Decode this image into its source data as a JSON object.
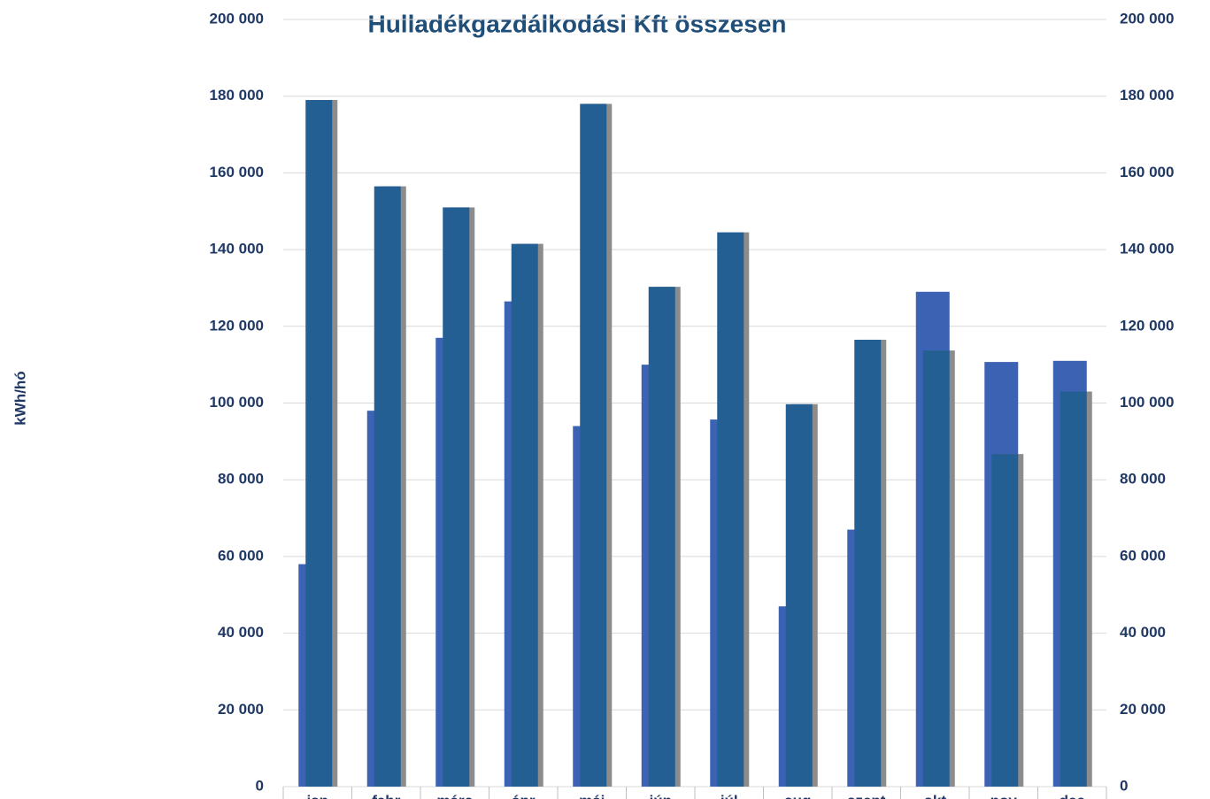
{
  "chart_data": {
    "type": "bar",
    "title": "Hulladékgazdálkodási Kft összesen",
    "y_label": "kWh/hó",
    "categories": [
      "jan",
      "febr",
      "márc",
      "ápr",
      "máj",
      "jún",
      "júl",
      "aug",
      "szept",
      "okt",
      "nov",
      "dec"
    ],
    "series": [
      {
        "color": "#3b62b3",
        "values": [
          58000,
          98000,
          117000,
          126500,
          94000,
          110000,
          95700,
          47000,
          67000,
          129000,
          110700,
          111000
        ]
      },
      {
        "color": "#245f93",
        "values": [
          179000,
          156500,
          151000,
          141500,
          178000,
          130300,
          144500,
          99700,
          116500,
          113700,
          86700,
          103000
        ]
      }
    ],
    "ylim": [
      0,
      200000
    ],
    "yticks": [
      0,
      {
        "value": 20000,
        "label": "20 000"
      },
      {
        "value": 40000,
        "label": "40 000"
      },
      {
        "value": 60000,
        "label": "60 000"
      },
      {
        "value": 80000,
        "label": "80 000"
      },
      {
        "value": 100000,
        "label": "100 000"
      },
      {
        "value": 120000,
        "label": "120 000"
      },
      {
        "value": 140000,
        "label": "140 000"
      },
      {
        "value": 160000,
        "label": "160 000"
      },
      {
        "value": 180000,
        "label": "180 000"
      },
      {
        "value": 200000,
        "label": "200 000"
      }
    ],
    "grid": true
  }
}
